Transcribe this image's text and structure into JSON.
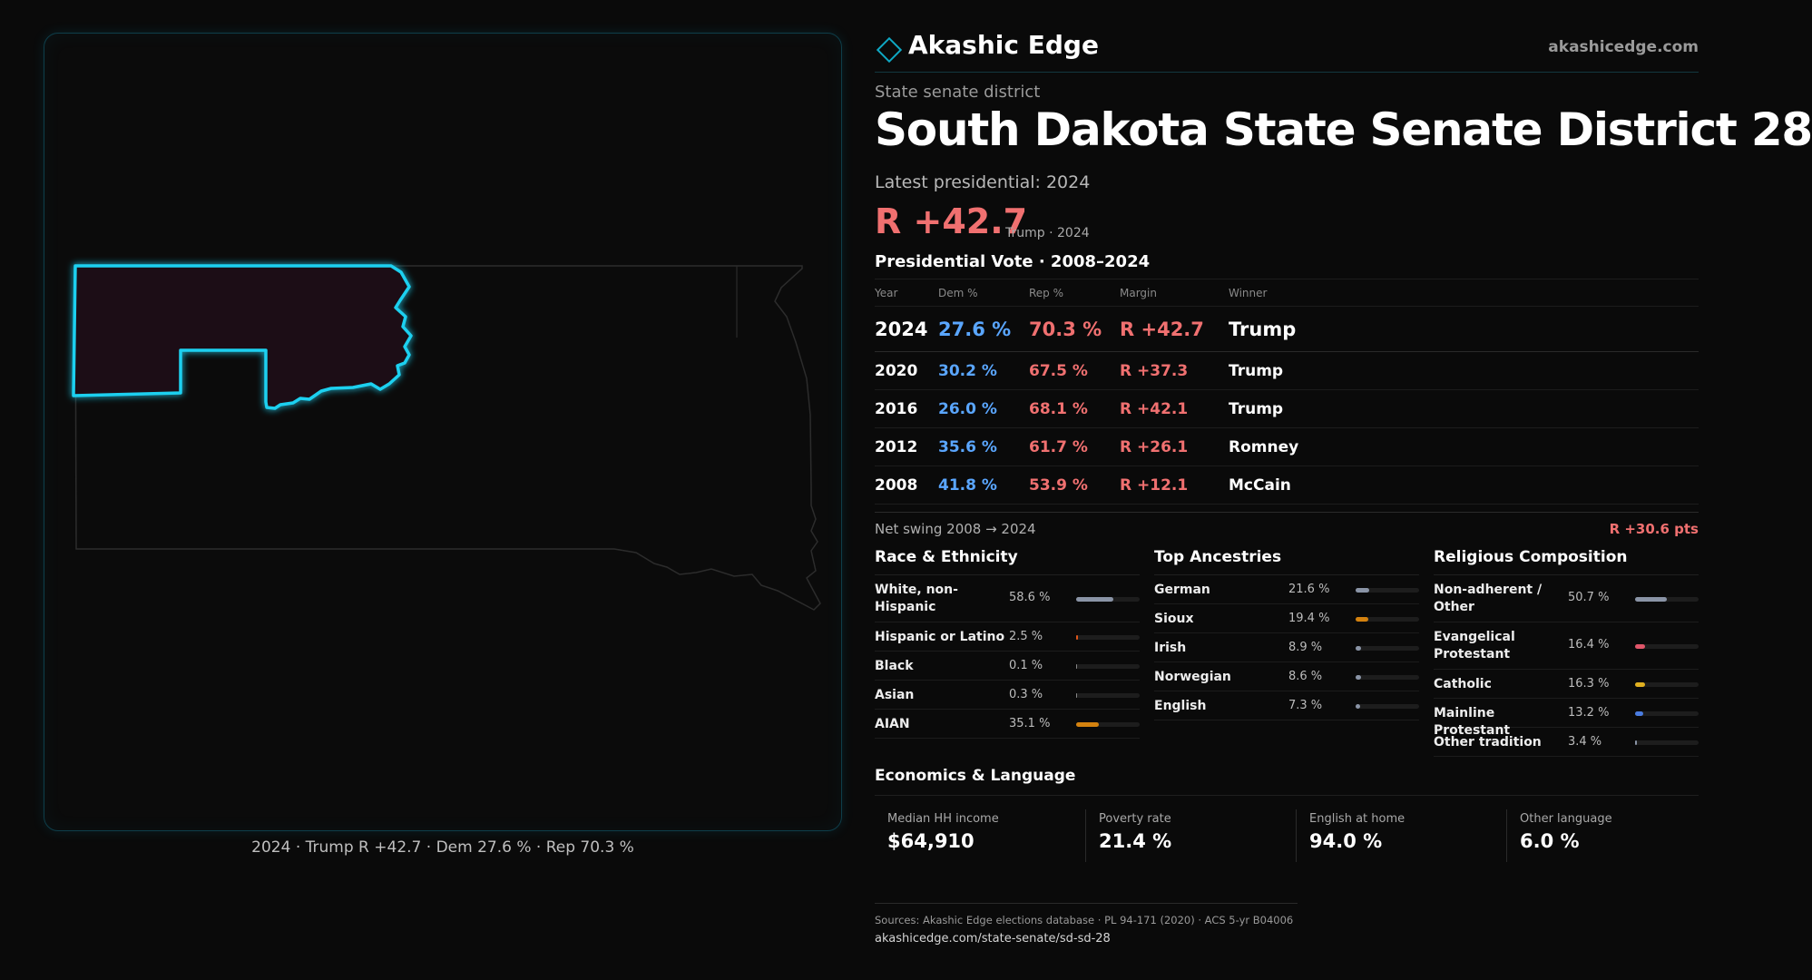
{
  "brand": {
    "name": "Akashic Edge",
    "url": "akashicedge.com"
  },
  "header": {
    "kicker": "State senate district",
    "title": "South Dakota State Senate District 28",
    "latest_label": "Latest presidential: 2024",
    "headline_margin": "R +42.7",
    "headline_sub": "Trump · 2024"
  },
  "map": {
    "caption": "2024 · Trump R +42.7 · Dem 27.6 % · Rep 70.3 %"
  },
  "vote_table": {
    "title": "Presidential Vote · 2008–2024",
    "headers": [
      "Year",
      "Dem %",
      "Rep %",
      "Margin",
      "Winner"
    ],
    "rows": [
      {
        "year": "2024",
        "dem": "27.6 %",
        "rep": "70.3 %",
        "margin": "R +42.7",
        "winner": "Trump"
      },
      {
        "year": "2020",
        "dem": "30.2 %",
        "rep": "67.5 %",
        "margin": "R +37.3",
        "winner": "Trump"
      },
      {
        "year": "2016",
        "dem": "26.0 %",
        "rep": "68.1 %",
        "margin": "R +42.1",
        "winner": "Trump"
      },
      {
        "year": "2012",
        "dem": "35.6 %",
        "rep": "61.7 %",
        "margin": "R +26.1",
        "winner": "Romney"
      },
      {
        "year": "2008",
        "dem": "41.8 %",
        "rep": "53.9 %",
        "margin": "R +12.1",
        "winner": "McCain"
      }
    ]
  },
  "swing": {
    "label": "Net swing 2008 → 2024",
    "value": "R +30.6 pts"
  },
  "race": {
    "title": "Race & Ethnicity",
    "rows": [
      {
        "label": "White, non-Hispanic",
        "value": "58.6 %",
        "pct": 58.6,
        "color": "#8a94a6"
      },
      {
        "label": "Hispanic or Latino",
        "value": "2.5 %",
        "pct": 2.5,
        "color": "#e0561a"
      },
      {
        "label": "Black",
        "value": "0.1 %",
        "pct": 0.1,
        "color": "#888888"
      },
      {
        "label": "Asian",
        "value": "0.3 %",
        "pct": 0.3,
        "color": "#888888"
      },
      {
        "label": "AIAN",
        "value": "35.1 %",
        "pct": 35.1,
        "color": "#d4820f"
      }
    ]
  },
  "ancestry": {
    "title": "Top Ancestries",
    "rows": [
      {
        "label": "German",
        "value": "21.6 %",
        "pct": 21.6,
        "color": "#8a94a6"
      },
      {
        "label": "Sioux",
        "value": "19.4 %",
        "pct": 19.4,
        "color": "#d4820f"
      },
      {
        "label": "Irish",
        "value": "8.9 %",
        "pct": 8.9,
        "color": "#8a94a6"
      },
      {
        "label": "Norwegian",
        "value": "8.6 %",
        "pct": 8.6,
        "color": "#8a94a6"
      },
      {
        "label": "English",
        "value": "7.3 %",
        "pct": 7.3,
        "color": "#8a94a6"
      }
    ]
  },
  "religion": {
    "title": "Religious Composition",
    "rows": [
      {
        "label": "Non-adherent / Other",
        "value": "50.7 %",
        "pct": 50.7,
        "color": "#8a94a6"
      },
      {
        "label": "Evangelical Protestant",
        "value": "16.4 %",
        "pct": 16.4,
        "color": "#e0566a"
      },
      {
        "label": "Catholic",
        "value": "16.3 %",
        "pct": 16.3,
        "color": "#e0b020"
      },
      {
        "label": "Mainline Protestant",
        "value": "13.2 %",
        "pct": 13.2,
        "color": "#4a7ce0"
      },
      {
        "label": "Other tradition",
        "value": "3.4 %",
        "pct": 3.4,
        "color": "#8a94a6"
      }
    ]
  },
  "economics": {
    "title": "Economics & Language",
    "cells": [
      {
        "label": "Median HH income",
        "value": "$64,910"
      },
      {
        "label": "Poverty rate",
        "value": "21.4 %"
      },
      {
        "label": "English at home",
        "value": "94.0 %"
      },
      {
        "label": "Other language",
        "value": "6.0 %"
      }
    ]
  },
  "footer": {
    "sources": "Sources: Akashic Edge elections database · PL 94-171 (2020) · ACS 5-yr B04006",
    "permalink": "akashicedge.com/state-senate/sd-sd-28"
  },
  "colors": {
    "accent": "#0fa8c4",
    "district_outline": "#1fd0f0",
    "dem": "#5aa6ff",
    "rep": "#f07070"
  }
}
